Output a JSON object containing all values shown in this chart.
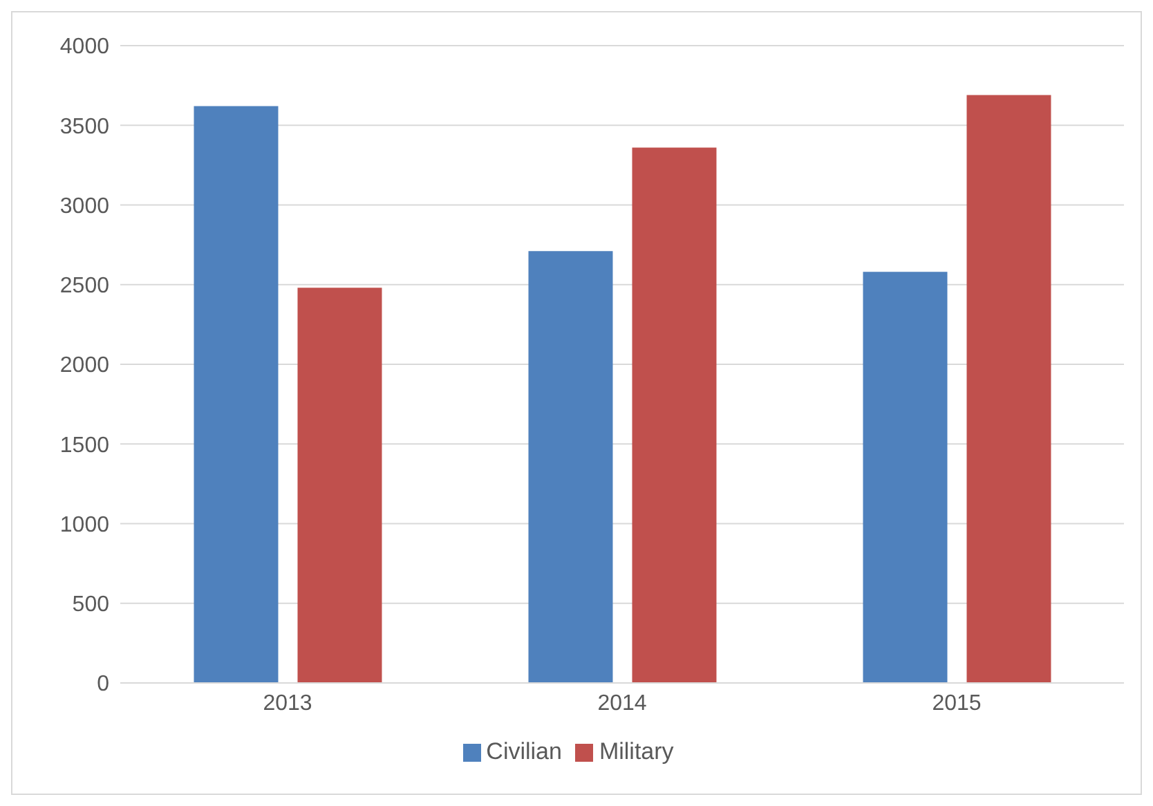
{
  "chart_data": {
    "type": "bar",
    "categories": [
      "2013",
      "2014",
      "2015"
    ],
    "series": [
      {
        "name": "Civilian",
        "color": "#4f81bd",
        "values": [
          3620,
          2710,
          2580
        ]
      },
      {
        "name": "Military",
        "color": "#c0504d",
        "values": [
          2480,
          3360,
          3690
        ]
      }
    ],
    "ylim": [
      0,
      4000
    ],
    "yticks": [
      0,
      500,
      1000,
      1500,
      2000,
      2500,
      3000,
      3500,
      4000
    ],
    "grid": "y",
    "legend": "bottom"
  }
}
